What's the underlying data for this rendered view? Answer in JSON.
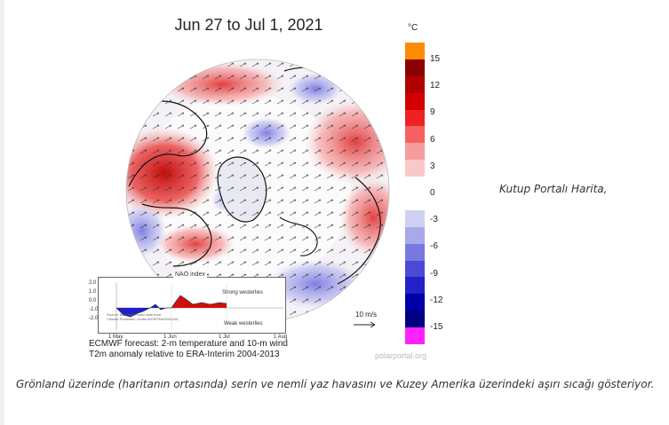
{
  "map": {
    "title": "Jun 27 to Jul 1, 2021",
    "unit": "°C",
    "colorbar_ticks": [
      "15",
      "12",
      "9",
      "6",
      "3",
      "0",
      "-3",
      "-6",
      "-9",
      "-12",
      "-15"
    ],
    "colorbar_colors": [
      "#ff8c00",
      "#8b0000",
      "#b00000",
      "#d40000",
      "#ee2222",
      "#f56060",
      "#f79c9c",
      "#f9c8c8",
      "#ffffff",
      "#ffffff",
      "#d0d0f4",
      "#a8a8ec",
      "#7878e0",
      "#4a4ad6",
      "#2222c8",
      "#0000a8",
      "#000080",
      "#ff22ff"
    ],
    "wind_scale": "10 m/s",
    "credit": "polarportal.org",
    "nao": {
      "title": "NAO index",
      "y_ticks": [
        "2.0",
        "1.0",
        "0.0",
        "-1.0",
        "-2.0"
      ],
      "strong_label": "Strong westerlies",
      "weak_label": "Weak westerlies",
      "x_ticks": [
        "1 May",
        "1 Jun",
        "1 Jul",
        "1 Aug"
      ],
      "source_line1": "Source: Bias NAO index data from:",
      "source_line2": "Climate Prediction Center/NCEP/NWS/NOAA"
    },
    "caption_line1": "ECMWF forecast: 2-m temperature and 10-m wind",
    "caption_line2": "T2m anomaly relative to ERA-Interim 2004-2013"
  },
  "side_caption": "Kutup Portalı Harita,",
  "bottom_caption": "Grönland üzerinde (haritanın ortasında) serin ve nemli yaz havasını ve Kuzey Amerika üzerindeki aşırı sıcağı gösteriyor."
}
